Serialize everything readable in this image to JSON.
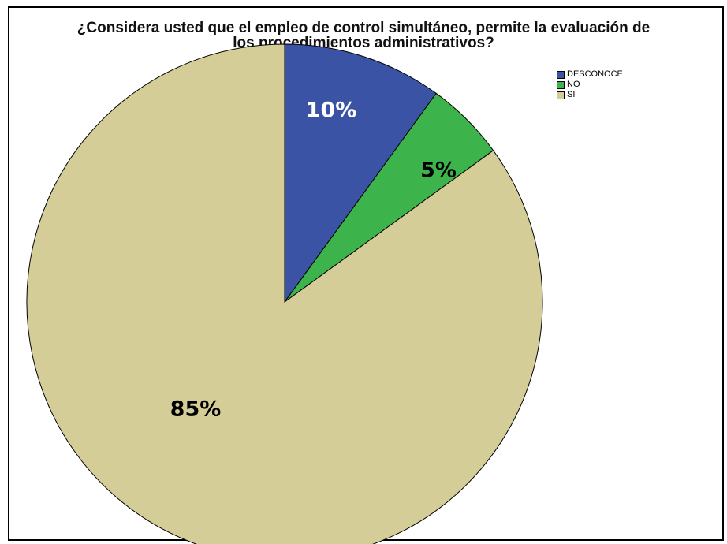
{
  "chart_data": {
    "type": "pie",
    "title_lines": [
      "¿Considera usted que el empleo de control simultáneo, permite la evaluación de",
      "los procedimientos administrativos?"
    ],
    "slices": [
      {
        "name": "DESCONOCE",
        "value": 10,
        "label": "10%",
        "color": "#3a53a4",
        "label_color": "#ffffff"
      },
      {
        "name": "NO",
        "value": 5,
        "label": "5%",
        "color": "#3cb44b",
        "label_color": "#000000"
      },
      {
        "name": "SI",
        "value": 85,
        "label": "85%",
        "color": "#d4cd98",
        "label_color": "#000000"
      }
    ],
    "legend_position": "top-right"
  }
}
